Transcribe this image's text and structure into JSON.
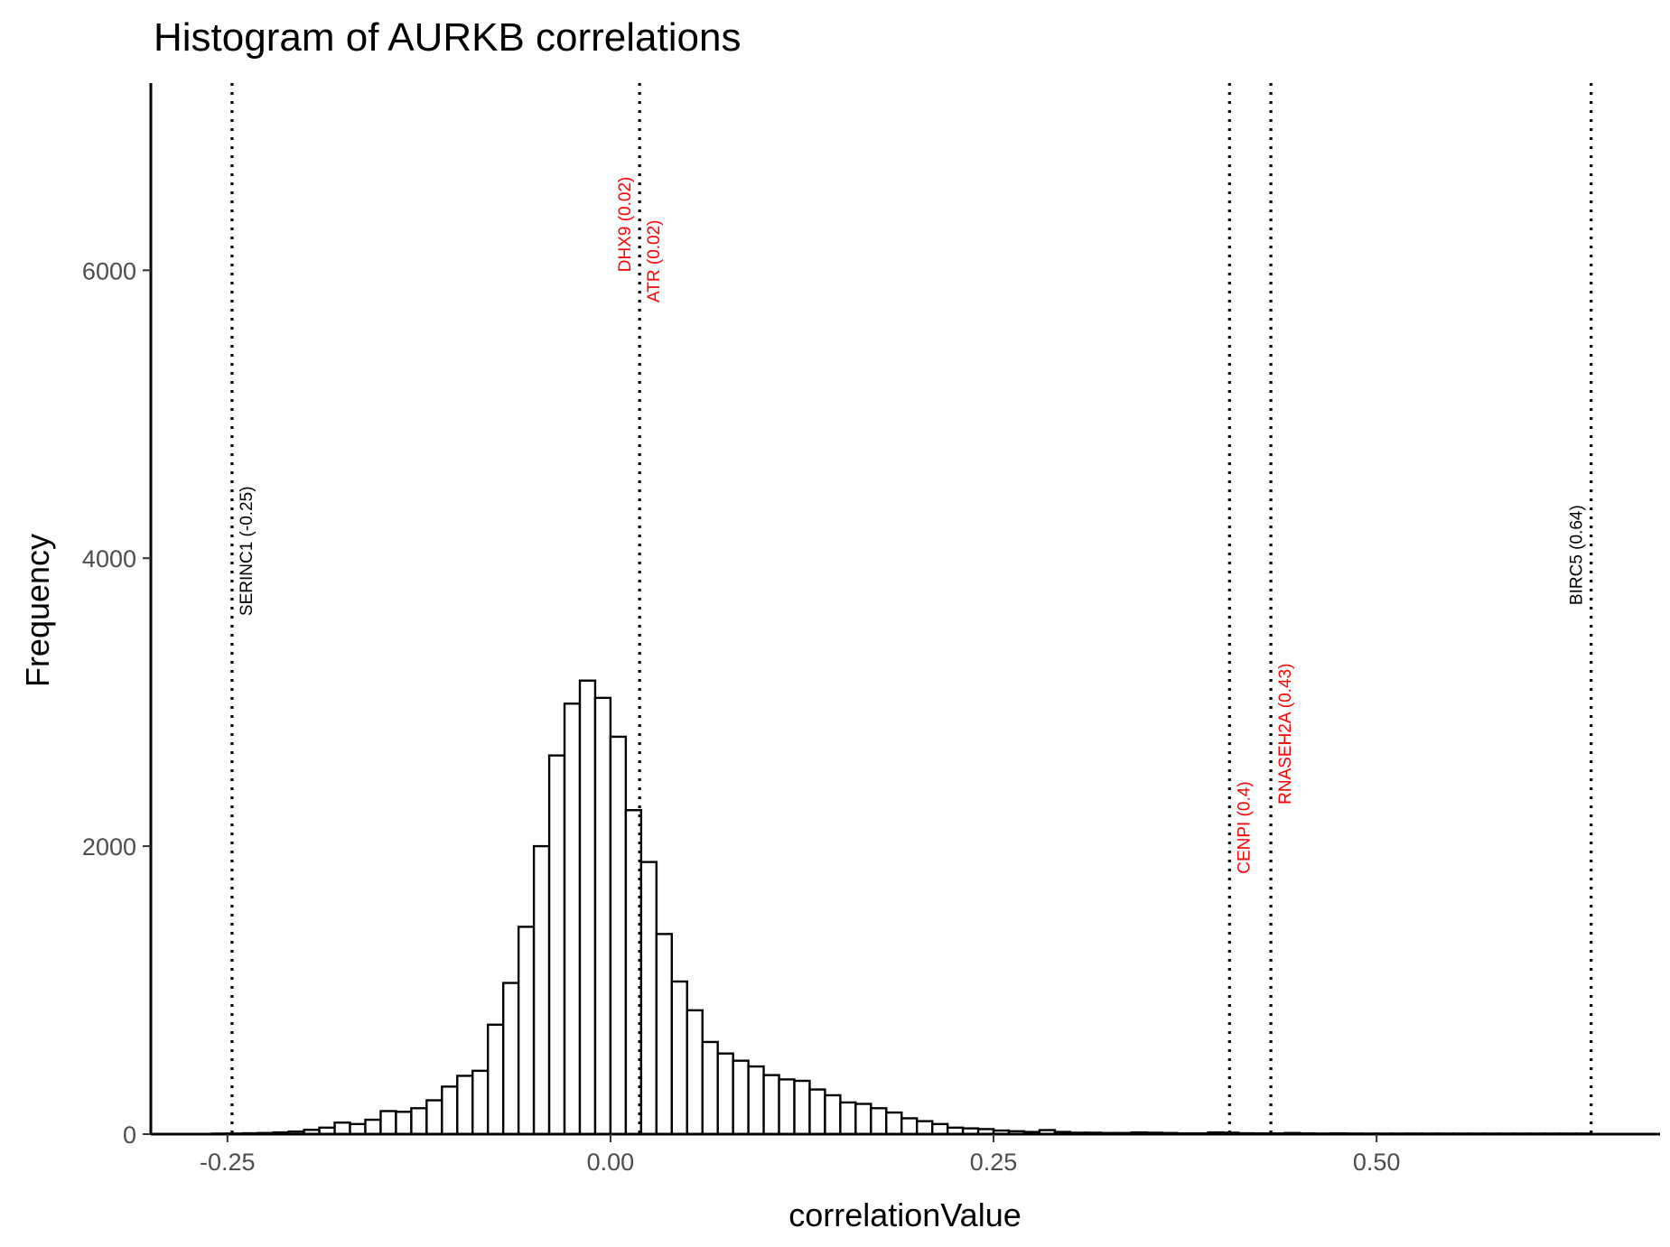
{
  "chart_data": {
    "type": "bar",
    "title": "Histogram of AURKB correlations",
    "xlabel": "correlationValue",
    "ylabel": "Frequency",
    "xlim": [
      -0.3,
      0.685
    ],
    "ylim": [
      0,
      7300
    ],
    "x_ticks": [
      {
        "value": -0.25,
        "label": "-0.25"
      },
      {
        "value": 0.0,
        "label": "0.00"
      },
      {
        "value": 0.25,
        "label": "0.25"
      },
      {
        "value": 0.5,
        "label": "0.50"
      }
    ],
    "y_ticks": [
      {
        "value": 0,
        "label": "0"
      },
      {
        "value": 2000,
        "label": "2000"
      },
      {
        "value": 4000,
        "label": "4000"
      },
      {
        "value": 6000,
        "label": "6000"
      }
    ],
    "bin_width": 0.01,
    "bins_start": [
      -0.26,
      -0.25,
      -0.24,
      -0.23,
      -0.22,
      -0.21,
      -0.2,
      -0.19,
      -0.18,
      -0.17,
      -0.16,
      -0.15,
      -0.14,
      -0.13,
      -0.12,
      -0.11,
      -0.1,
      -0.09,
      -0.08,
      -0.07,
      -0.06,
      -0.05,
      -0.04,
      -0.03,
      -0.02,
      -0.01,
      0.0,
      0.01,
      0.02,
      0.03,
      0.04,
      0.05,
      0.06,
      0.07,
      0.08,
      0.09,
      0.1,
      0.11,
      0.12,
      0.13,
      0.14,
      0.15,
      0.16,
      0.17,
      0.18,
      0.19,
      0.2,
      0.21,
      0.22,
      0.23,
      0.24,
      0.25,
      0.26,
      0.27,
      0.28,
      0.29,
      0.3,
      0.31,
      0.32,
      0.33,
      0.34,
      0.35,
      0.36,
      0.37,
      0.38,
      0.39,
      0.4,
      0.41,
      0.42,
      0.43,
      0.44,
      0.45,
      0.46,
      0.47,
      0.48,
      0.49,
      0.5,
      0.51,
      0.52,
      0.53,
      0.54,
      0.55,
      0.56,
      0.57,
      0.58,
      0.59,
      0.6,
      0.61,
      0.62,
      0.63
    ],
    "counts": [
      2,
      4,
      6,
      8,
      12,
      18,
      30,
      45,
      80,
      70,
      100,
      160,
      155,
      180,
      235,
      330,
      405,
      440,
      760,
      1050,
      1440,
      2000,
      2630,
      2990,
      3150,
      3030,
      2760,
      2250,
      1890,
      1390,
      1060,
      860,
      640,
      560,
      510,
      470,
      410,
      380,
      370,
      310,
      270,
      220,
      210,
      180,
      150,
      110,
      90,
      70,
      45,
      40,
      35,
      25,
      20,
      15,
      28,
      15,
      10,
      10,
      8,
      8,
      12,
      10,
      8,
      5,
      5,
      12,
      10,
      6,
      5,
      5,
      8,
      5,
      4,
      5,
      4,
      3,
      3,
      3,
      4,
      3,
      3,
      3,
      3,
      3,
      3,
      3,
      3,
      3,
      3,
      2
    ],
    "annotations": [
      {
        "gene": "SERINC1 (-0.25)",
        "x": -0.247,
        "color": "#000000",
        "label_top_y": 4500,
        "side": "right"
      },
      {
        "gene": "DHX9 (0.02)",
        "x": 0.019,
        "color": "#ff0000",
        "label_top_y": 6650,
        "side": "left"
      },
      {
        "gene": "ATR (0.02)",
        "x": 0.019,
        "color": "#ff0000",
        "label_top_y": 6350,
        "side": "right"
      },
      {
        "gene": "CENPI (0.4)",
        "x": 0.404,
        "color": "#ff0000",
        "label_top_y": 2450,
        "side": "right"
      },
      {
        "gene": "RNASEH2A (0.43)",
        "x": 0.431,
        "color": "#ff0000",
        "label_top_y": 3270,
        "side": "right"
      },
      {
        "gene": "BIRC5 (0.64)",
        "x": 0.64,
        "color": "#000000",
        "label_top_y": 4370,
        "side": "left"
      }
    ],
    "colors": {
      "bar_fill": "#ffffff",
      "bar_stroke": "#000000",
      "highlight": "#ff0000",
      "tick_text": "#4d4d4d"
    },
    "grid": false,
    "legend": "none"
  }
}
